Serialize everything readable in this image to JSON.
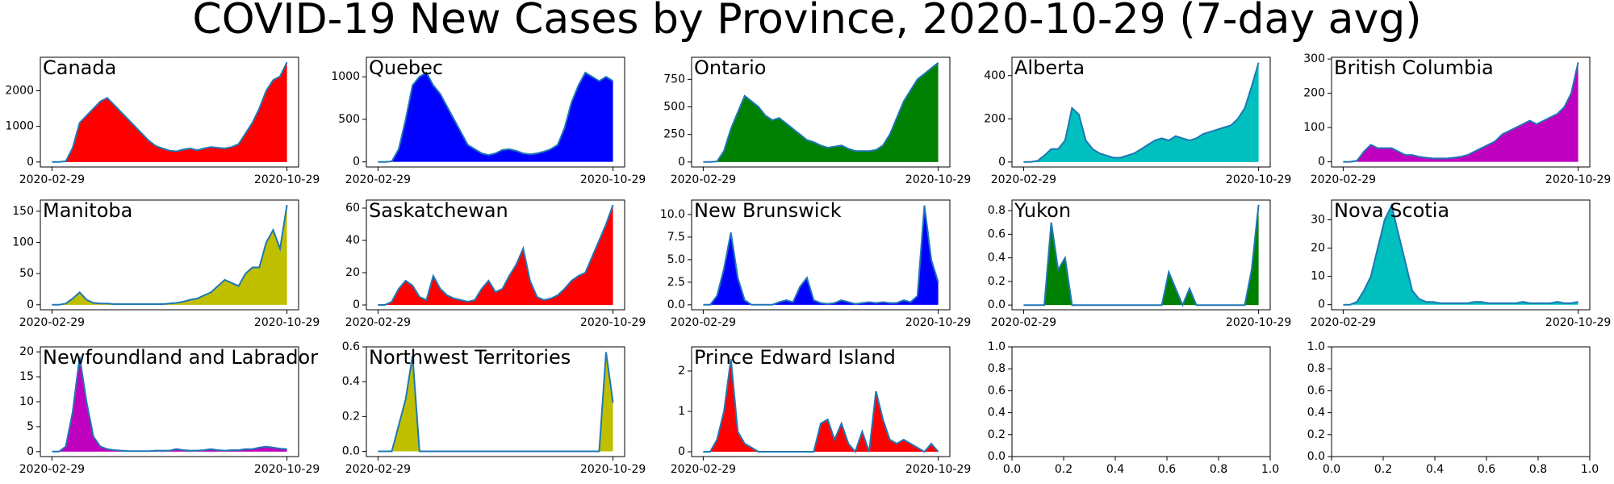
{
  "title": "COVID-19 New Cases by Province, 2020-10-29 (7-day avg)",
  "chart_data": [
    {
      "type": "area",
      "title": "Canada",
      "color": "#ff0000",
      "line_color": "#1f77b4",
      "categories": [
        "2020-02-29",
        null,
        null,
        null,
        null,
        null,
        null,
        null,
        null,
        null,
        null,
        null,
        null,
        null,
        null,
        null,
        null,
        null,
        null,
        null,
        null,
        null,
        null,
        null,
        null,
        null,
        null,
        null,
        null,
        null,
        null,
        null,
        null,
        null,
        "2020-10-29"
      ],
      "values": [
        0,
        0,
        20,
        400,
        1100,
        1300,
        1500,
        1700,
        1800,
        1600,
        1400,
        1200,
        1000,
        800,
        600,
        450,
        380,
        320,
        300,
        350,
        380,
        330,
        380,
        420,
        400,
        380,
        420,
        500,
        800,
        1100,
        1500,
        2000,
        2300,
        2400,
        2800
      ],
      "ylim": [
        -140,
        2940
      ],
      "yticks": [
        0,
        1000,
        2000
      ]
    },
    {
      "type": "area",
      "title": "Quebec",
      "color": "#0000ff",
      "line_color": "#1f77b4",
      "categories": [
        "2020-02-29",
        null,
        null,
        null,
        null,
        null,
        null,
        null,
        null,
        null,
        null,
        null,
        null,
        null,
        null,
        null,
        null,
        null,
        null,
        null,
        null,
        null,
        null,
        null,
        null,
        null,
        null,
        null,
        null,
        null,
        null,
        null,
        null,
        null,
        "2020-10-29"
      ],
      "values": [
        0,
        0,
        5,
        150,
        500,
        900,
        1000,
        1050,
        900,
        800,
        650,
        500,
        350,
        200,
        150,
        100,
        80,
        100,
        140,
        150,
        130,
        100,
        90,
        100,
        120,
        150,
        200,
        400,
        700,
        900,
        1050,
        1000,
        950,
        1000,
        950
      ],
      "ylim": [
        -60,
        1230
      ],
      "yticks": [
        0,
        500,
        1000
      ]
    },
    {
      "type": "area",
      "title": "Ontario",
      "color": "#008000",
      "line_color": "#1f77b4",
      "categories": [
        "2020-02-29",
        null,
        null,
        null,
        null,
        null,
        null,
        null,
        null,
        null,
        null,
        null,
        null,
        null,
        null,
        null,
        null,
        null,
        null,
        null,
        null,
        null,
        null,
        null,
        null,
        null,
        null,
        null,
        null,
        null,
        null,
        null,
        null,
        null,
        "2020-10-29"
      ],
      "values": [
        0,
        0,
        5,
        100,
        300,
        450,
        600,
        550,
        500,
        420,
        380,
        400,
        350,
        300,
        250,
        200,
        180,
        150,
        130,
        140,
        150,
        120,
        100,
        100,
        100,
        110,
        150,
        250,
        400,
        550,
        650,
        750,
        800,
        850,
        900
      ],
      "ylim": [
        -45,
        950
      ],
      "yticks": [
        0,
        250,
        500,
        750
      ]
    },
    {
      "type": "area",
      "title": "Alberta",
      "color": "#00bfbf",
      "line_color": "#1f77b4",
      "categories": [
        "2020-02-29",
        null,
        null,
        null,
        null,
        null,
        null,
        null,
        null,
        null,
        null,
        null,
        null,
        null,
        null,
        null,
        null,
        null,
        null,
        null,
        null,
        null,
        null,
        null,
        null,
        null,
        null,
        null,
        null,
        null,
        null,
        null,
        null,
        null,
        "2020-10-29"
      ],
      "values": [
        0,
        0,
        5,
        30,
        60,
        60,
        100,
        250,
        220,
        100,
        60,
        40,
        30,
        20,
        20,
        30,
        40,
        60,
        80,
        100,
        110,
        100,
        120,
        110,
        100,
        110,
        130,
        140,
        150,
        160,
        170,
        200,
        250,
        350,
        460
      ],
      "ylim": [
        -23,
        485
      ],
      "yticks": [
        0,
        200,
        400
      ]
    },
    {
      "type": "area",
      "title": "British Columbia",
      "color": "#bf00bf",
      "line_color": "#1f77b4",
      "categories": [
        "2020-02-29",
        null,
        null,
        null,
        null,
        null,
        null,
        null,
        null,
        null,
        null,
        null,
        null,
        null,
        null,
        null,
        null,
        null,
        null,
        null,
        null,
        null,
        null,
        null,
        null,
        null,
        null,
        null,
        null,
        null,
        null,
        null,
        null,
        null,
        "2020-10-29"
      ],
      "values": [
        0,
        0,
        3,
        30,
        50,
        40,
        40,
        40,
        30,
        20,
        20,
        15,
        12,
        10,
        10,
        10,
        12,
        15,
        20,
        30,
        40,
        50,
        60,
        80,
        90,
        100,
        110,
        120,
        110,
        120,
        130,
        140,
        160,
        200,
        290
      ],
      "ylim": [
        -15,
        305
      ],
      "yticks": [
        0,
        100,
        200,
        300
      ]
    },
    {
      "type": "area",
      "title": "Manitoba",
      "color": "#bfbf00",
      "line_color": "#1f77b4",
      "categories": [
        "2020-02-29",
        null,
        null,
        null,
        null,
        null,
        null,
        null,
        null,
        null,
        null,
        null,
        null,
        null,
        null,
        null,
        null,
        null,
        null,
        null,
        null,
        null,
        null,
        null,
        null,
        null,
        null,
        null,
        null,
        null,
        null,
        null,
        null,
        null,
        "2020-10-29"
      ],
      "values": [
        0,
        0,
        2,
        10,
        20,
        8,
        3,
        2,
        2,
        1,
        1,
        1,
        1,
        1,
        1,
        1,
        1,
        2,
        3,
        5,
        8,
        10,
        15,
        20,
        30,
        40,
        35,
        30,
        50,
        60,
        60,
        100,
        120,
        90,
        160
      ],
      "ylim": [
        -8,
        168
      ],
      "yticks": [
        0,
        50,
        100,
        150
      ]
    },
    {
      "type": "area",
      "title": "Saskatchewan",
      "color": "#ff0000",
      "line_color": "#1f77b4",
      "categories": [
        "2020-02-29",
        null,
        null,
        null,
        null,
        null,
        null,
        null,
        null,
        null,
        null,
        null,
        null,
        null,
        null,
        null,
        null,
        null,
        null,
        null,
        null,
        null,
        null,
        null,
        null,
        null,
        null,
        null,
        null,
        null,
        null,
        null,
        null,
        null,
        "2020-10-29"
      ],
      "values": [
        0,
        0,
        2,
        10,
        15,
        12,
        5,
        3,
        18,
        10,
        6,
        4,
        3,
        2,
        3,
        10,
        15,
        8,
        10,
        18,
        25,
        35,
        15,
        5,
        3,
        4,
        6,
        10,
        15,
        18,
        20,
        30,
        40,
        50,
        62
      ],
      "ylim": [
        -3,
        65
      ],
      "yticks": [
        0,
        20,
        40,
        60
      ]
    },
    {
      "type": "area",
      "title": "New Brunswick",
      "color": "#0000ff",
      "line_color": "#1f77b4",
      "categories": [
        "2020-02-29",
        null,
        null,
        null,
        null,
        null,
        null,
        null,
        null,
        null,
        null,
        null,
        null,
        null,
        null,
        null,
        null,
        null,
        null,
        null,
        null,
        null,
        null,
        null,
        null,
        null,
        null,
        null,
        null,
        null,
        null,
        null,
        null,
        null,
        "2020-10-29"
      ],
      "values": [
        0,
        0,
        1,
        4,
        8,
        3,
        0.5,
        0,
        0,
        0,
        0,
        0.3,
        0.5,
        0.3,
        2,
        3,
        0.5,
        0.2,
        0.1,
        0.2,
        0.5,
        0.3,
        0.1,
        0.2,
        0.3,
        0.2,
        0.3,
        0.2,
        0.2,
        0.5,
        0.3,
        1,
        11,
        5,
        2.5
      ],
      "ylim": [
        -0.55,
        11.6
      ],
      "yticks": [
        {
          "value": 0,
          "label": "0.0"
        },
        2.5,
        {
          "value": 5,
          "label": "5.0"
        },
        7.5,
        {
          "value": 10,
          "label": "10.0"
        }
      ]
    },
    {
      "type": "area",
      "title": "Yukon",
      "color": "#008000",
      "line_color": "#1f77b4",
      "categories": [
        "2020-02-29",
        null,
        null,
        null,
        null,
        null,
        null,
        null,
        null,
        null,
        null,
        null,
        null,
        null,
        null,
        null,
        null,
        null,
        null,
        null,
        null,
        null,
        null,
        null,
        null,
        null,
        null,
        null,
        null,
        null,
        null,
        null,
        null,
        null,
        "2020-10-29"
      ],
      "values": [
        0,
        0,
        0,
        0,
        0.7,
        0.3,
        0.4,
        0,
        0,
        0,
        0,
        0,
        0,
        0,
        0,
        0,
        0,
        0,
        0,
        0,
        0,
        0.28,
        0.14,
        0,
        0.14,
        0,
        0,
        0,
        0,
        0,
        0,
        0,
        0,
        0.3,
        0.85
      ],
      "ylim": [
        -0.04,
        0.89
      ],
      "yticks": [
        {
          "value": 0,
          "label": "0.0"
        },
        0.2,
        0.4,
        0.6,
        0.8
      ]
    },
    {
      "type": "area",
      "title": "Nova Scotia",
      "color": "#00bfbf",
      "line_color": "#1f77b4",
      "categories": [
        "2020-02-29",
        null,
        null,
        null,
        null,
        null,
        null,
        null,
        null,
        null,
        null,
        null,
        null,
        null,
        null,
        null,
        null,
        null,
        null,
        null,
        null,
        null,
        null,
        null,
        null,
        null,
        null,
        null,
        null,
        null,
        null,
        null,
        null,
        null,
        "2020-10-29"
      ],
      "values": [
        0,
        0,
        1,
        5,
        10,
        20,
        30,
        35,
        25,
        15,
        5,
        2,
        1,
        1,
        0.5,
        0.5,
        0.5,
        0.5,
        0.5,
        1,
        1,
        0.5,
        0.5,
        0.5,
        0.5,
        0.5,
        1,
        0.5,
        0.5,
        0.5,
        0.5,
        1,
        0.5,
        0.5,
        1
      ],
      "ylim": [
        -1.8,
        37
      ],
      "yticks": [
        0,
        10,
        20,
        30
      ]
    },
    {
      "type": "area",
      "title": "Newfoundland and Labrador",
      "color": "#bf00bf",
      "line_color": "#1f77b4",
      "categories": [
        "2020-02-29",
        null,
        null,
        null,
        null,
        null,
        null,
        null,
        null,
        null,
        null,
        null,
        null,
        null,
        null,
        null,
        null,
        null,
        null,
        null,
        null,
        null,
        null,
        null,
        null,
        null,
        null,
        null,
        null,
        null,
        null,
        null,
        null,
        null,
        "2020-10-29"
      ],
      "values": [
        0,
        0,
        1,
        8,
        19,
        10,
        3,
        1,
        0.5,
        0.3,
        0.2,
        0.1,
        0.1,
        0.1,
        0.1,
        0.2,
        0.2,
        0.2,
        0.5,
        0.3,
        0.2,
        0.2,
        0.3,
        0.5,
        0.3,
        0.2,
        0.3,
        0.3,
        0.5,
        0.5,
        0.8,
        1,
        0.8,
        0.6,
        0.5
      ],
      "ylim": [
        -1,
        21
      ],
      "yticks": [
        0,
        5,
        10,
        15,
        20
      ]
    },
    {
      "type": "area",
      "title": "Northwest Territories",
      "color": "#bfbf00",
      "line_color": "#1f77b4",
      "categories": [
        "2020-02-29",
        null,
        null,
        null,
        null,
        null,
        null,
        null,
        null,
        null,
        null,
        null,
        null,
        null,
        null,
        null,
        null,
        null,
        null,
        null,
        null,
        null,
        null,
        null,
        null,
        null,
        null,
        null,
        null,
        null,
        null,
        null,
        null,
        null,
        "2020-10-29"
      ],
      "values": [
        0,
        0,
        0,
        0.15,
        0.3,
        0.55,
        0,
        0,
        0,
        0,
        0,
        0,
        0,
        0,
        0,
        0,
        0,
        0,
        0,
        0,
        0,
        0,
        0,
        0,
        0,
        0,
        0,
        0,
        0,
        0,
        0,
        0,
        0,
        0.57,
        0.28
      ],
      "ylim": [
        -0.03,
        0.6
      ],
      "yticks": [
        {
          "value": 0,
          "label": "0.0"
        },
        0.2,
        0.4,
        0.6
      ]
    },
    {
      "type": "area",
      "title": "Prince Edward Island",
      "color": "#ff0000",
      "line_color": "#1f77b4",
      "categories": [
        "2020-02-29",
        null,
        null,
        null,
        null,
        null,
        null,
        null,
        null,
        null,
        null,
        null,
        null,
        null,
        null,
        null,
        null,
        null,
        null,
        null,
        null,
        null,
        null,
        null,
        null,
        null,
        null,
        null,
        null,
        null,
        null,
        null,
        null,
        null,
        "2020-10-29"
      ],
      "values": [
        0,
        0,
        0.3,
        1,
        2.3,
        0.5,
        0.2,
        0.1,
        0,
        0,
        0,
        0,
        0,
        0,
        0,
        0,
        0,
        0.7,
        0.8,
        0.3,
        0.7,
        0.2,
        0,
        0.5,
        0,
        1.5,
        0.8,
        0.3,
        0.2,
        0.3,
        0.2,
        0.1,
        0,
        0.2,
        0
      ],
      "ylim": [
        -0.12,
        2.6
      ],
      "yticks": [
        0,
        1,
        2
      ]
    },
    {
      "type": "empty",
      "xlim": [
        0,
        1
      ],
      "xticks": [
        {
          "value": 0,
          "label": "0.0"
        },
        0.2,
        0.4,
        0.6,
        0.8,
        {
          "value": 1,
          "label": "1.0"
        }
      ],
      "ylim": [
        0,
        1
      ],
      "yticks": [
        {
          "value": 0,
          "label": "0.0"
        },
        0.2,
        0.4,
        0.6,
        0.8,
        {
          "value": 1,
          "label": "1.0"
        }
      ]
    },
    {
      "type": "empty",
      "xlim": [
        0,
        1
      ],
      "xticks": [
        {
          "value": 0,
          "label": "0.0"
        },
        0.2,
        0.4,
        0.6,
        0.8,
        {
          "value": 1,
          "label": "1.0"
        }
      ],
      "ylim": [
        0,
        1
      ],
      "yticks": [
        {
          "value": 0,
          "label": "0.0"
        },
        0.2,
        0.4,
        0.6,
        0.8,
        {
          "value": 1,
          "label": "1.0"
        }
      ]
    }
  ]
}
